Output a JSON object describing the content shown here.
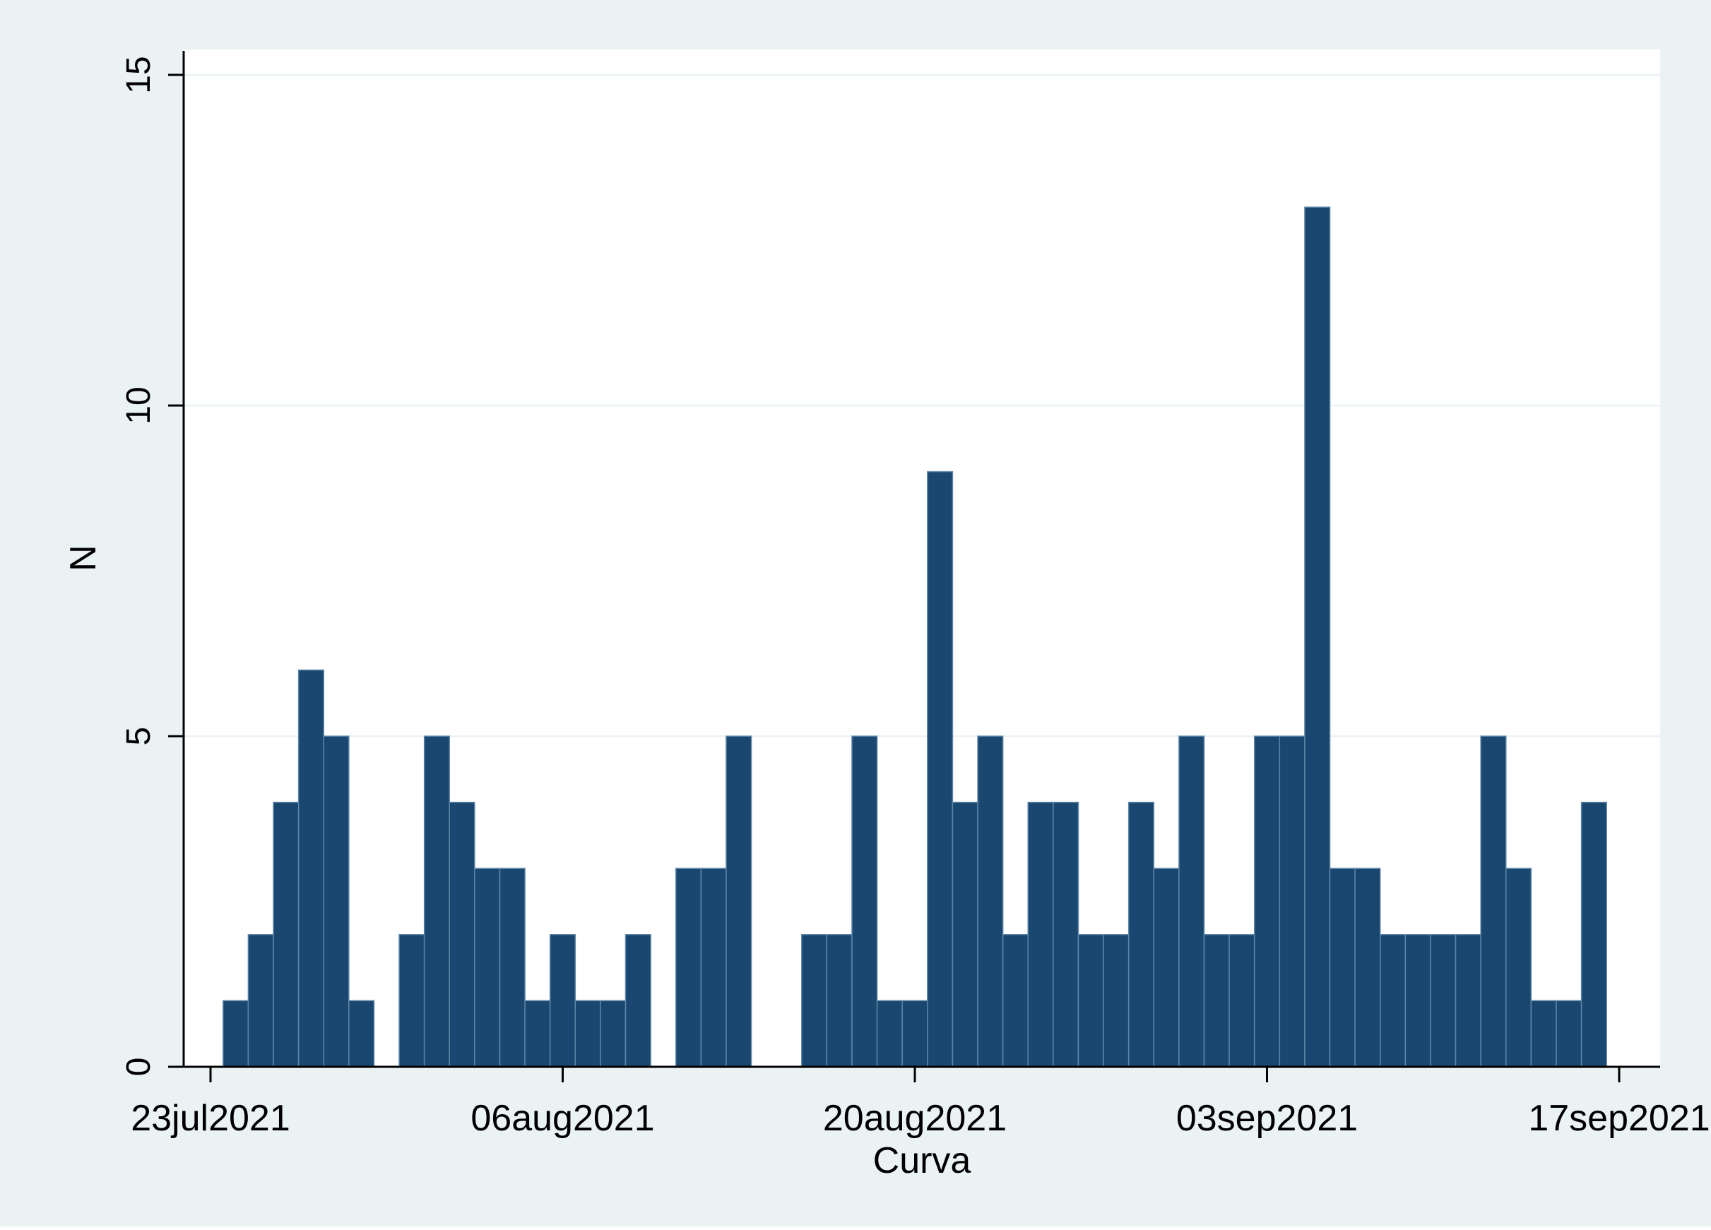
{
  "colors": {
    "outer_background": "#eaf2f3",
    "plot_background": "#ffffff",
    "bar_fill": "#1a476f",
    "bar_edge": "#5d86a8",
    "gridline": "#eaf2f3",
    "axis": "#000000",
    "text": "#000000"
  },
  "chart_data": {
    "type": "bar",
    "xlabel": "Curva",
    "ylabel": "N",
    "ylim": [
      0,
      15
    ],
    "yticks": [
      0,
      5,
      10,
      15
    ],
    "xlim": [
      "2021-07-23",
      "2021-09-17"
    ],
    "xticks": [
      "2021-07-23",
      "2021-08-06",
      "2021-08-20",
      "2021-09-03",
      "2021-09-17"
    ],
    "xtick_labels": [
      "23jul2021",
      "06aug2021",
      "20aug2021",
      "03sep2021",
      "17sep2021"
    ],
    "grid": "horizontal",
    "legend": "none",
    "categories": [
      "2021-07-24",
      "2021-07-25",
      "2021-07-26",
      "2021-07-27",
      "2021-07-28",
      "2021-07-29",
      "2021-07-30",
      "2021-07-31",
      "2021-08-01",
      "2021-08-02",
      "2021-08-03",
      "2021-08-04",
      "2021-08-05",
      "2021-08-06",
      "2021-08-07",
      "2021-08-08",
      "2021-08-09",
      "2021-08-10",
      "2021-08-11",
      "2021-08-12",
      "2021-08-13",
      "2021-08-14",
      "2021-08-15",
      "2021-08-16",
      "2021-08-17",
      "2021-08-18",
      "2021-08-19",
      "2021-08-20",
      "2021-08-21",
      "2021-08-22",
      "2021-08-23",
      "2021-08-24",
      "2021-08-25",
      "2021-08-26",
      "2021-08-27",
      "2021-08-28",
      "2021-08-29",
      "2021-08-30",
      "2021-08-31",
      "2021-09-01",
      "2021-09-02",
      "2021-09-03",
      "2021-09-04",
      "2021-09-05",
      "2021-09-06",
      "2021-09-07",
      "2021-09-08",
      "2021-09-09",
      "2021-09-10",
      "2021-09-11",
      "2021-09-12",
      "2021-09-13",
      "2021-09-14",
      "2021-09-15",
      "2021-09-16",
      "2021-09-17"
    ],
    "values": [
      1,
      2,
      4,
      6,
      5,
      1,
      0,
      2,
      5,
      4,
      3,
      3,
      1,
      2,
      1,
      1,
      2,
      0,
      3,
      3,
      5,
      0,
      0,
      2,
      2,
      5,
      1,
      1,
      9,
      4,
      5,
      2,
      4,
      4,
      2,
      2,
      4,
      3,
      5,
      2,
      2,
      5,
      5,
      13,
      3,
      3,
      2,
      2,
      2,
      2,
      5,
      3,
      1,
      1,
      4,
      0
    ]
  }
}
